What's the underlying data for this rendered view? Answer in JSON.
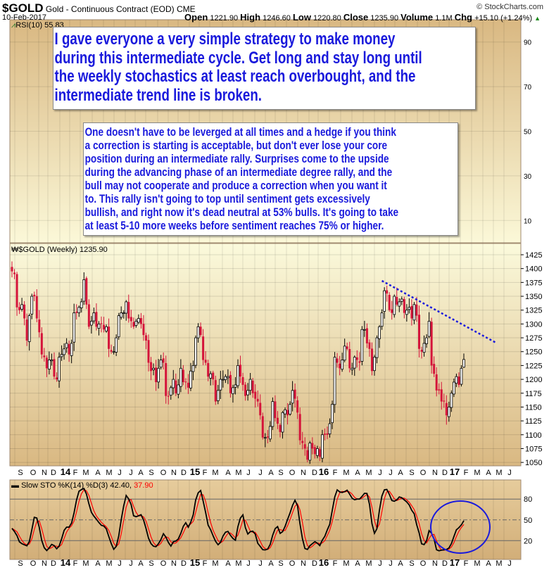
{
  "header": {
    "symbol": "$GOLD",
    "name": "Gold - Continuous Contract (EOD) CME",
    "date": "10-Feb-2017",
    "copyright": "© StockCharts.com",
    "open_label": "Open",
    "open": "1221.90",
    "high_label": "High",
    "high": "1246.60",
    "low_label": "Low",
    "low": "1220.80",
    "close_label": "Close",
    "close": "1235.90",
    "volume_label": "Volume",
    "volume": "1.1M",
    "chg_label": "Chg",
    "chg": "+15.10 (+1.24%)"
  },
  "annotations": {
    "box1": [
      "I gave everyone a very simple strategy to make money",
      "during this intermediate cycle. Get long and stay long until",
      "the weekly stochastics at least reach overbought, and the",
      "intermediate trend line is broken."
    ],
    "box2": [
      "One doesn't have to be leverged at all times and a hedge if you think",
      "a correction is starting is acceptable, but don't ever lose your core",
      "position during an intermediate rally. Surprises come to the upside",
      "during the advancing phase of an intermediate degree rally, and the",
      "bull may not cooperate and produce a correction when you want it",
      "to. This rally isn't going to top until sentiment gets excessively",
      "bullish, and right now it's dead neutral at 53% bulls. It's going to take",
      "at least 5-10 more weeks before sentiment reaches 75% or higher."
    ]
  },
  "colors": {
    "up": "#000000",
    "down": "#d4143a",
    "trendline": "#1a1adc",
    "k_line": "#000000",
    "d_line": "#ff0000",
    "circle": "#1a1adc"
  },
  "chart_data": [
    {
      "type": "line",
      "panel": "RSI",
      "label": "RSI(10) 55.83",
      "yticks": [
        90,
        70,
        50,
        30,
        10
      ],
      "ylim": [
        0,
        100
      ],
      "grid": true
    },
    {
      "type": "candlestick",
      "panel": "price",
      "label": "$GOLD (Weekly) 1235.90",
      "start_week": "2013-08-30",
      "closes": [
        1395,
        1390,
        1330,
        1325,
        1335,
        1310,
        1270,
        1315,
        1350,
        1350,
        1310,
        1285,
        1245,
        1240,
        1220,
        1235,
        1235,
        1205,
        1200,
        1240,
        1245,
        1255,
        1265,
        1245,
        1265,
        1320,
        1320,
        1330,
        1340,
        1380,
        1335,
        1295,
        1305,
        1320,
        1295,
        1300,
        1300,
        1290,
        1295,
        1255,
        1250,
        1250,
        1275,
        1315,
        1320,
        1320,
        1340,
        1310,
        1305,
        1295,
        1305,
        1310,
        1300,
        1280,
        1270,
        1230,
        1215,
        1220,
        1195,
        1220,
        1235,
        1230,
        1170,
        1170,
        1185,
        1200,
        1175,
        1190,
        1220,
        1195,
        1195,
        1185,
        1215,
        1225,
        1275,
        1295,
        1280,
        1235,
        1230,
        1205,
        1210,
        1200,
        1160,
        1180,
        1200,
        1200,
        1205,
        1205,
        1175,
        1185,
        1190,
        1225,
        1205,
        1190,
        1170,
        1180,
        1200,
        1175,
        1165,
        1160,
        1135,
        1095,
        1095,
        1095,
        1115,
        1160,
        1130,
        1120,
        1105,
        1140,
        1145,
        1135,
        1155,
        1180,
        1165,
        1140,
        1090,
        1085,
        1075,
        1055,
        1085,
        1075,
        1065,
        1075,
        1060,
        1100,
        1100,
        1100,
        1120,
        1155,
        1240,
        1230,
        1220,
        1235,
        1260,
        1255,
        1220,
        1220,
        1240,
        1235,
        1230,
        1290,
        1290,
        1265,
        1255,
        1215,
        1240,
        1275,
        1295,
        1320,
        1360,
        1355,
        1325,
        1320,
        1350,
        1335,
        1340,
        1345,
        1320,
        1325,
        1330,
        1310,
        1335,
        1315,
        1255,
        1250,
        1265,
        1275,
        1305,
        1225,
        1210,
        1180,
        1180,
        1160,
        1160,
        1135,
        1150,
        1175,
        1195,
        1205,
        1190,
        1220,
        1235.9
      ],
      "last": {
        "open": 1221.9,
        "high": 1246.6,
        "low": 1220.8,
        "close": 1235.9
      },
      "yticks": [
        1425,
        1400,
        1375,
        1350,
        1325,
        1300,
        1275,
        1250,
        1225,
        1200,
        1175,
        1150,
        1125,
        1100,
        1075,
        1050
      ],
      "ylim": [
        1040,
        1435
      ],
      "trendline": {
        "from": {
          "date": "2016-07-08",
          "price": 1378
        },
        "to": {
          "date": "2017-05-26",
          "price": 1266
        },
        "style": "dotted"
      }
    },
    {
      "type": "line",
      "panel": "stochastic",
      "label": "Slow STO %K(14) %D(3)",
      "k_value": "42.40,",
      "d_value": "37.90",
      "yticks": [
        80,
        50,
        20
      ],
      "ylim": [
        0,
        100
      ]
    }
  ],
  "xaxis": {
    "labels": [
      "S",
      "O",
      "N",
      "D",
      "14",
      "F",
      "M",
      "A",
      "M",
      "J",
      "J",
      "A",
      "S",
      "O",
      "N",
      "D",
      "15",
      "F",
      "M",
      "A",
      "M",
      "J",
      "J",
      "A",
      "S",
      "O",
      "N",
      "D",
      "16",
      "F",
      "M",
      "A",
      "M",
      "J",
      "J",
      "A",
      "S",
      "O",
      "N",
      "D",
      "17",
      "F",
      "M",
      "A",
      "M",
      "J"
    ]
  }
}
